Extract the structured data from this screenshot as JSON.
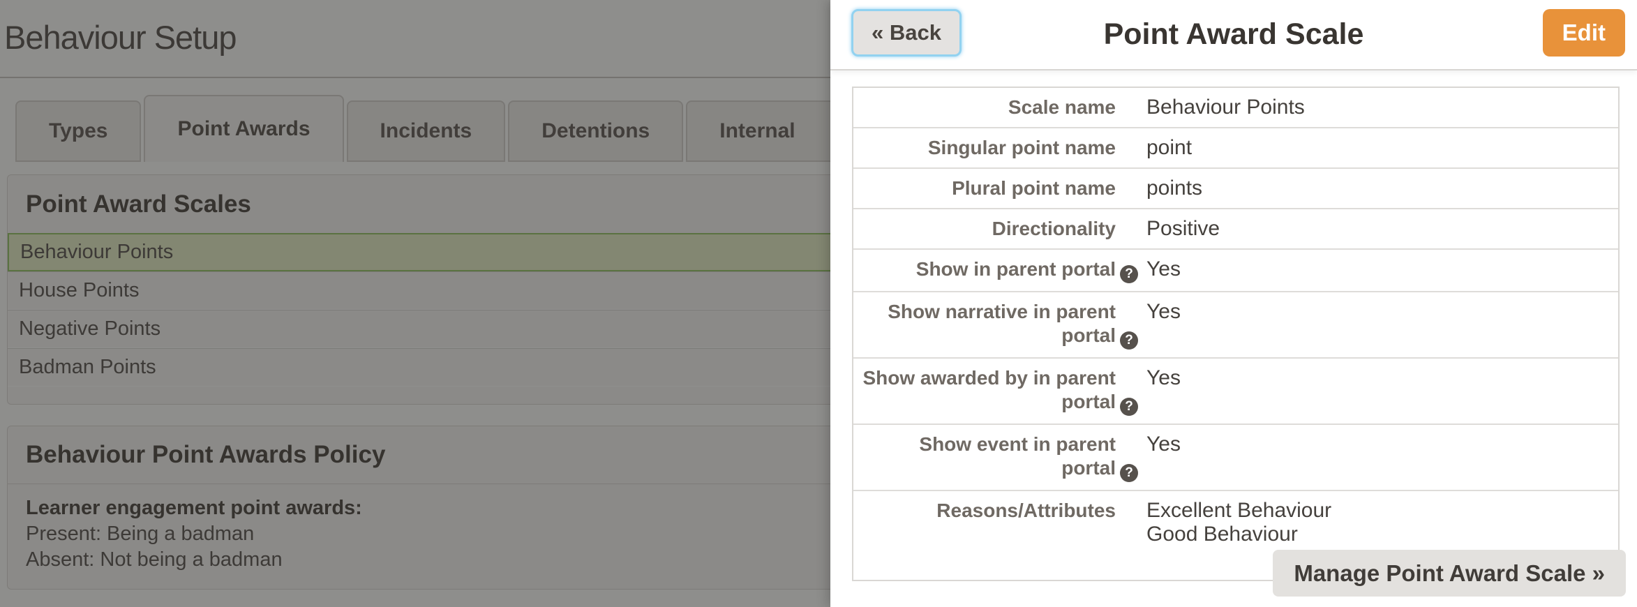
{
  "page": {
    "title": "Behaviour Setup",
    "tabs": [
      {
        "label": "Types",
        "active": false,
        "truncated": false
      },
      {
        "label": "Point Awards",
        "active": true,
        "truncated": false
      },
      {
        "label": "Incidents",
        "active": false,
        "truncated": false
      },
      {
        "label": "Detentions",
        "active": false,
        "truncated": false
      },
      {
        "label": "Internal",
        "active": false,
        "truncated": true
      }
    ],
    "scales_section": {
      "title": "Point Award Scales",
      "items": [
        {
          "label": "Behaviour Points",
          "selected": true
        },
        {
          "label": "House Points",
          "selected": false
        },
        {
          "label": "Negative Points",
          "selected": false
        },
        {
          "label": "Badman Points",
          "selected": false
        }
      ]
    },
    "policy_section": {
      "title": "Behaviour Point Awards Policy",
      "heading": "Learner engagement point awards:",
      "lines": [
        "Present: Being a badman",
        "Absent: Not being a badman"
      ]
    }
  },
  "panel": {
    "back_label": "« Back",
    "title": "Point Award Scale",
    "edit_label": "Edit",
    "help_icon_glyph": "?",
    "rows": [
      {
        "label": "Scale name",
        "value": "Behaviour Points",
        "help": false
      },
      {
        "label": "Singular point name",
        "value": "point",
        "help": false
      },
      {
        "label": "Plural point name",
        "value": "points",
        "help": false
      },
      {
        "label": "Directionality",
        "value": "Positive",
        "help": false
      },
      {
        "label": "Show in parent portal",
        "value": "Yes",
        "help": true
      },
      {
        "label": "Show narrative in parent portal",
        "value": "Yes",
        "help": true
      },
      {
        "label": "Show awarded by in parent portal",
        "value": "Yes",
        "help": true
      },
      {
        "label": "Show event in parent portal",
        "value": "Yes",
        "help": true
      },
      {
        "label": "Reasons/Attributes",
        "value": [
          "Excellent Behaviour",
          "Good Behaviour"
        ],
        "help": false
      }
    ],
    "manage_label": "Manage Point Award Scale »"
  },
  "colors": {
    "accent_orange": "#e8923a",
    "focus_blue": "#92d2f0",
    "selected_row_border_green": "#9fc872",
    "selected_row_bg_green": "#e7eec8",
    "help_icon_bg": "#56514c",
    "panel_bg": "#ffffff",
    "page_bg": "#fafaf7"
  }
}
